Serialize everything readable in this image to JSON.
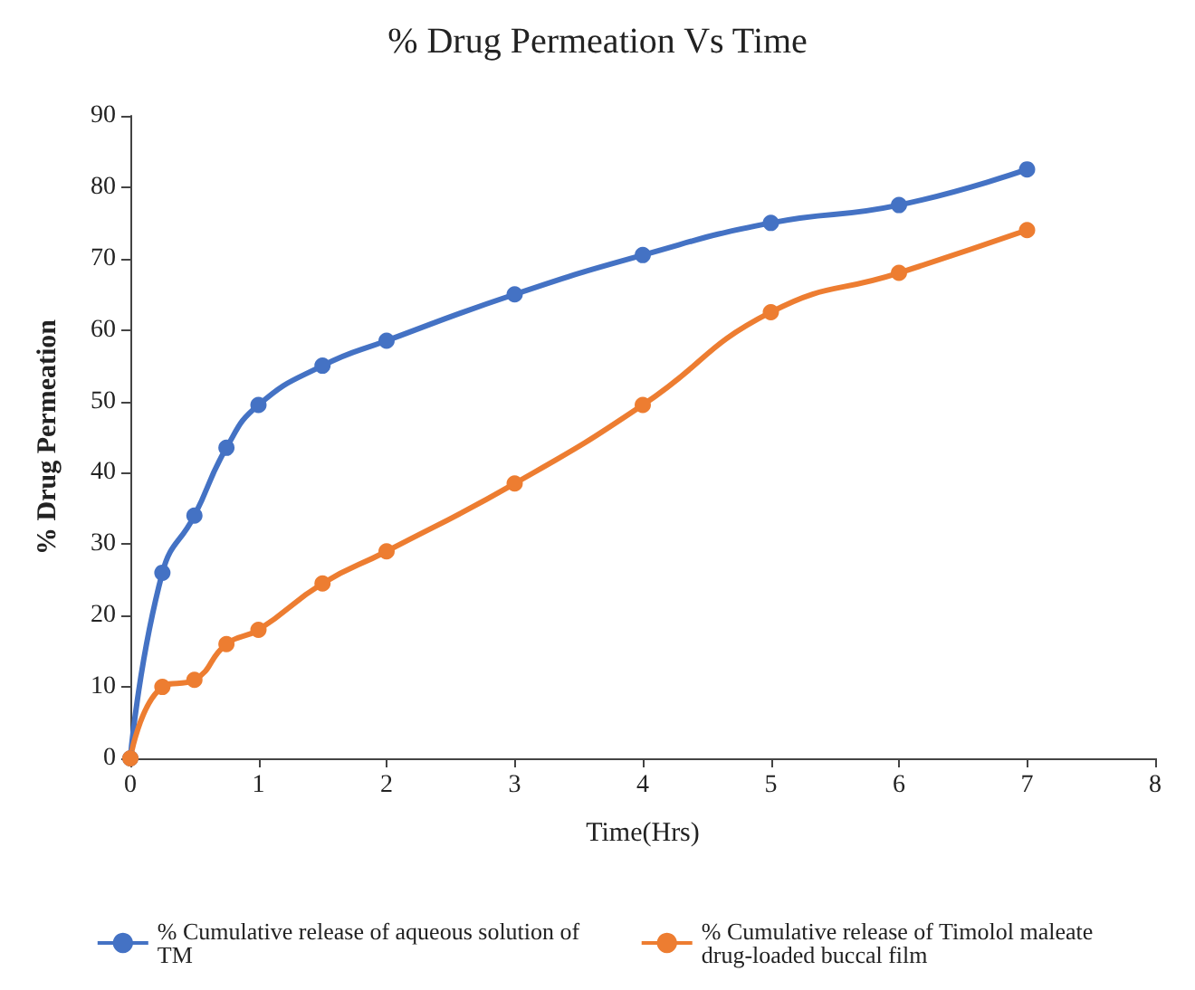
{
  "chart_data": {
    "type": "line",
    "title": "% Drug Permeation Vs Time",
    "xlabel": "Time(Hrs)",
    "ylabel": "% Drug Permeation",
    "x": [
      0,
      0.25,
      0.5,
      0.75,
      1,
      1.5,
      2,
      3,
      4,
      5,
      6,
      7
    ],
    "series": [
      {
        "name": "% Cumulative release of aqueous solution of TM",
        "color": "#4472c4",
        "values": [
          0,
          26,
          34,
          43.5,
          49.5,
          55,
          58.5,
          65,
          70.5,
          75,
          77.5,
          82.5
        ]
      },
      {
        "name": "% Cumulative release of Timolol maleate drug-loaded buccal film",
        "color": "#ed7d31",
        "values": [
          0,
          10,
          11,
          16,
          18,
          24.5,
          29,
          38.5,
          49.5,
          62.5,
          68,
          74
        ]
      }
    ],
    "xlim": [
      0,
      8
    ],
    "xticks": [
      0,
      1,
      2,
      3,
      4,
      5,
      6,
      7,
      8
    ],
    "ylim": [
      0,
      90
    ],
    "yticks": [
      0,
      10,
      20,
      30,
      40,
      50,
      60,
      70,
      80,
      90
    ],
    "grid": false,
    "legend": "bottom",
    "marker": "circle",
    "line_style": "solid"
  }
}
